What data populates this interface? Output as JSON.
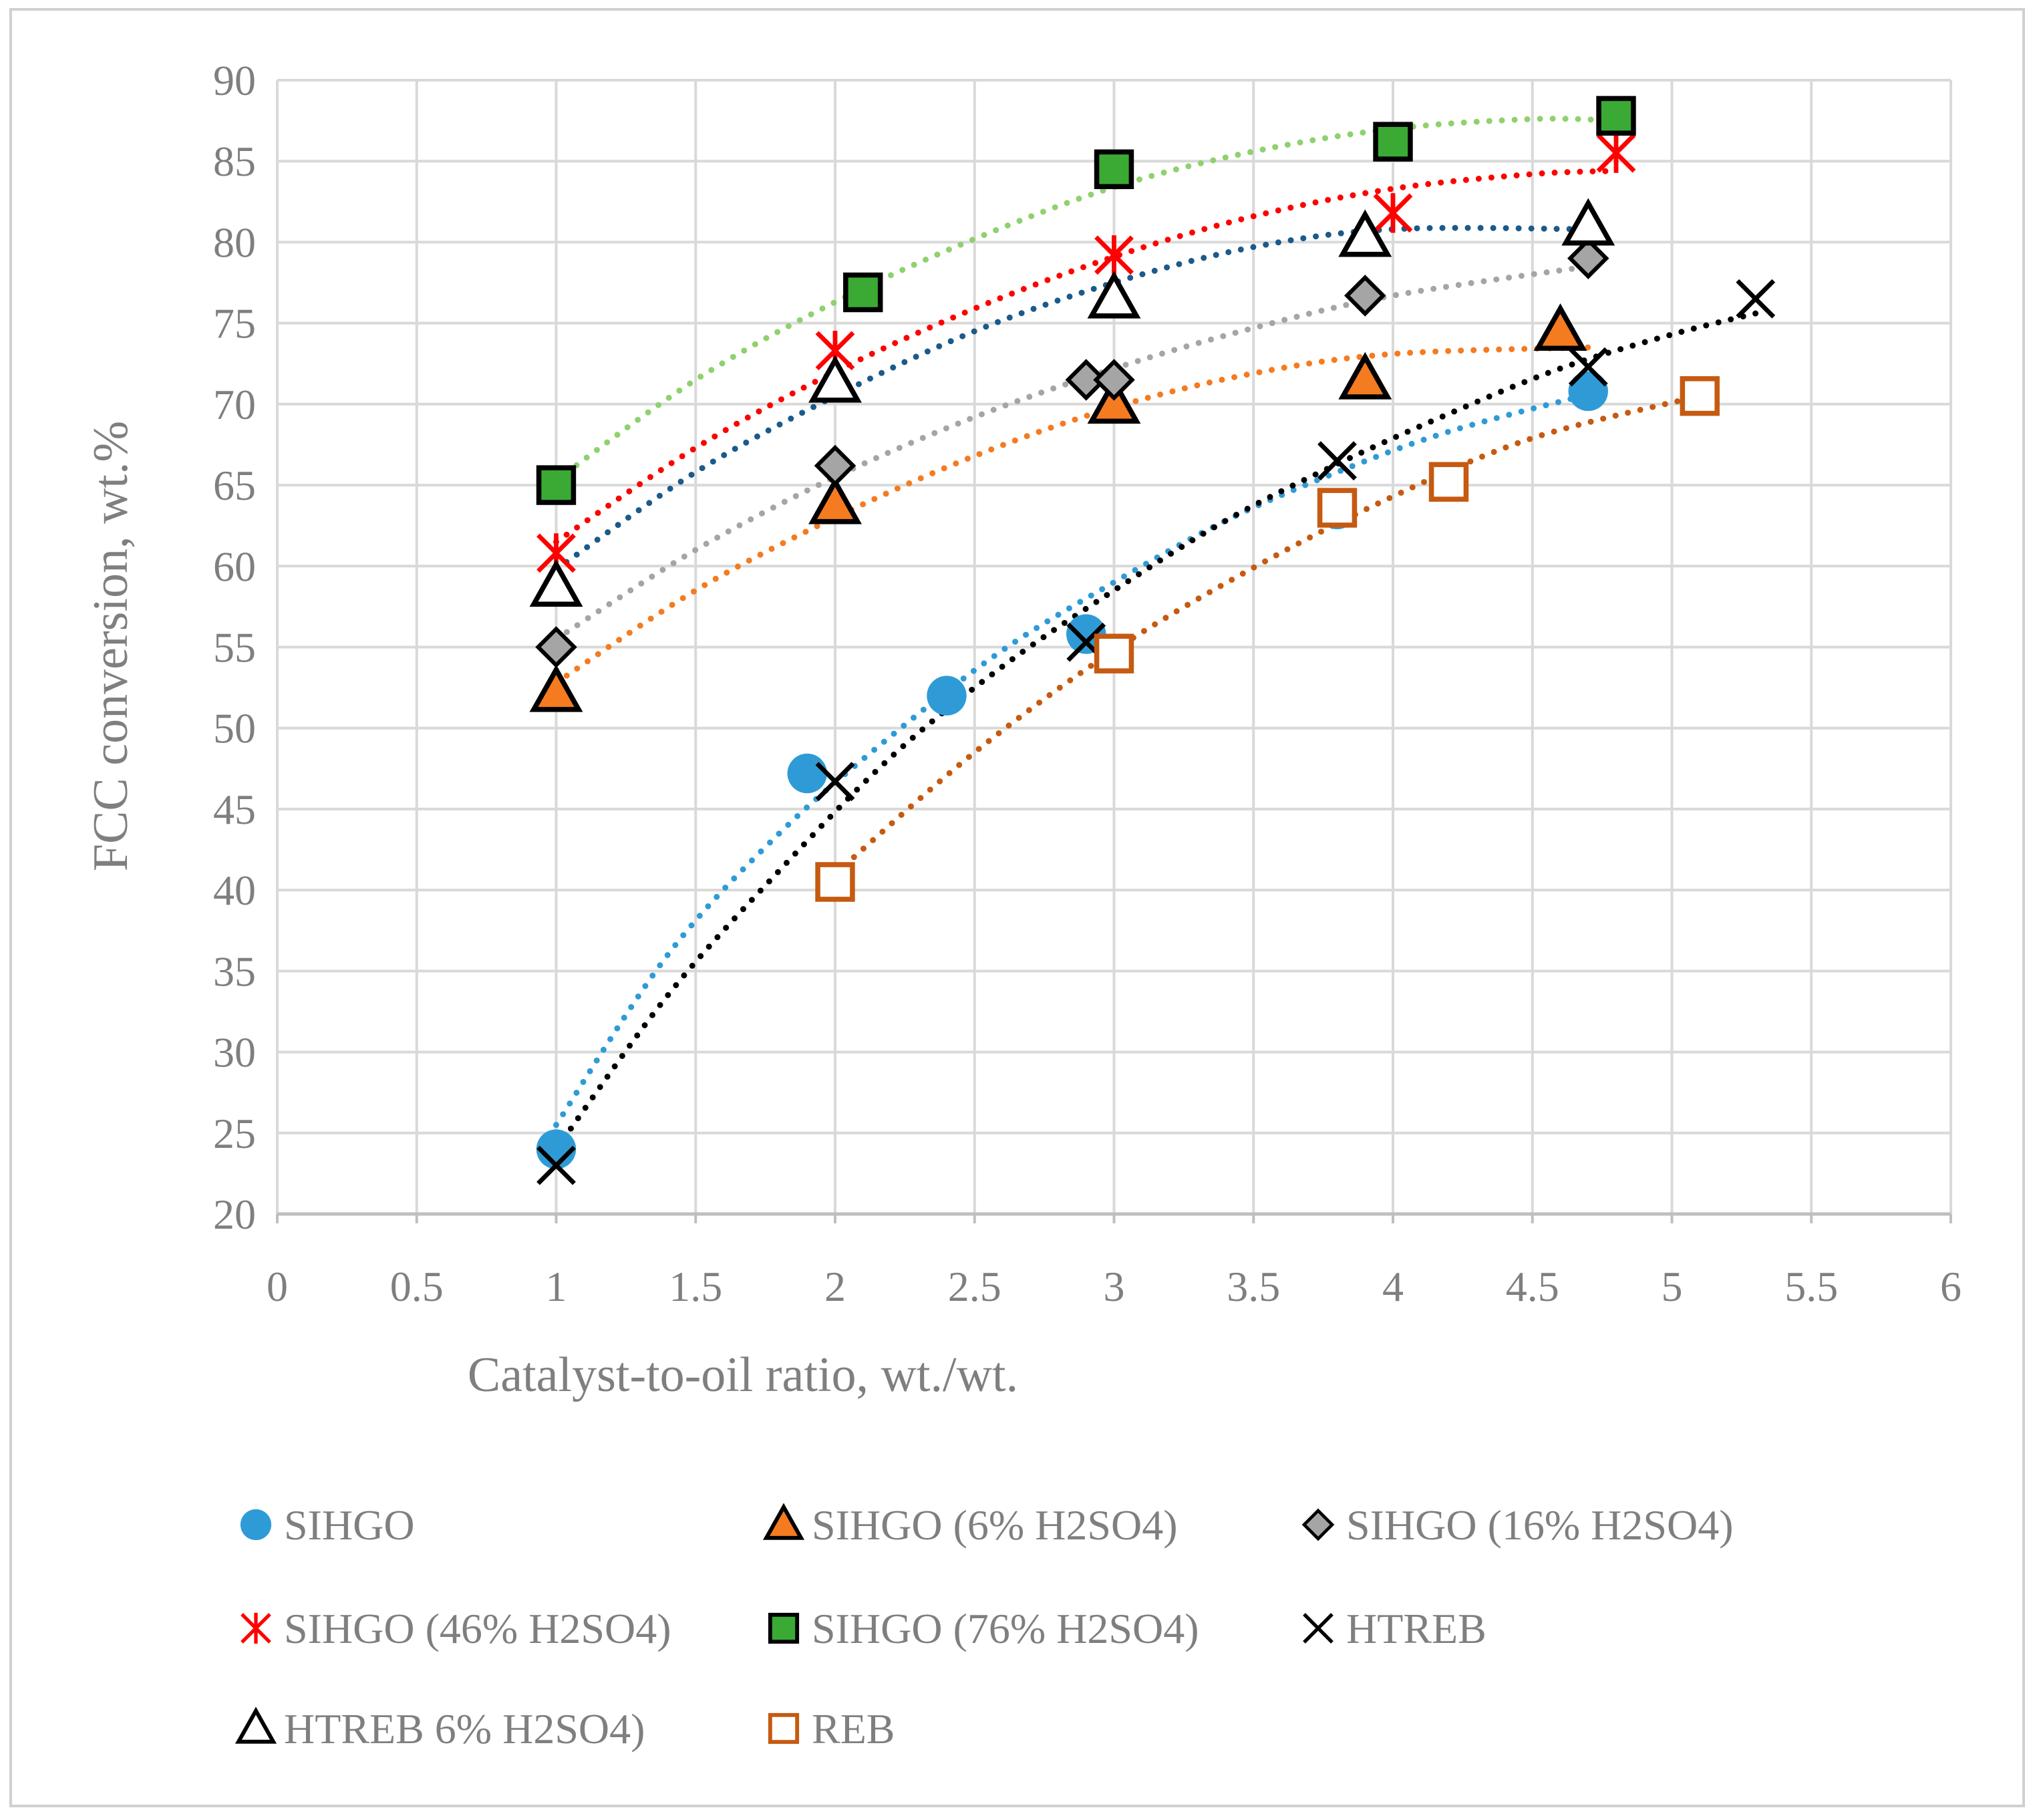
{
  "chart_data": {
    "type": "scatter",
    "title": "",
    "xlabel": "Catalyst-to-oil ratio, wt./wt.",
    "ylabel": "FCC conversion, wt.%",
    "xlim": [
      0,
      6
    ],
    "ylim": [
      20,
      90
    ],
    "xticks": [
      0,
      0.5,
      1,
      1.5,
      2,
      2.5,
      3,
      3.5,
      4,
      4.5,
      5,
      5.5,
      6
    ],
    "yticks": [
      20,
      25,
      30,
      35,
      40,
      45,
      50,
      55,
      60,
      65,
      70,
      75,
      80,
      85,
      90
    ],
    "xtick_labels": [
      "0",
      "0.5",
      "1",
      "1.5",
      "2",
      "2.5",
      "3",
      "3.5",
      "4",
      "4.5",
      "5",
      "5.5",
      "6"
    ],
    "ytick_labels": [
      "20",
      "25",
      "30",
      "35",
      "40",
      "45",
      "50",
      "55",
      "60",
      "65",
      "70",
      "75",
      "80",
      "85",
      "90"
    ],
    "grid": true,
    "legend_position": "bottom",
    "series": [
      {
        "name": "SIHGO",
        "marker": "circle",
        "color": "#2e9bd6",
        "trend_color": "#2e9bd6",
        "x": [
          1,
          1.9,
          2.4,
          2.9,
          3.8,
          4.7
        ],
        "y": [
          24,
          47.2,
          52,
          55.8,
          63.5,
          70.8
        ],
        "trend_x": [
          1,
          1.4,
          1.8,
          2.2,
          2.6,
          3.0,
          3.4,
          3.8,
          4.2,
          4.7
        ],
        "trend_y": [
          25.5,
          36.0,
          43.5,
          49.5,
          54.8,
          59.0,
          62.8,
          65.8,
          68.3,
          70.6
        ]
      },
      {
        "name": "SIHGO (6% H2SO4)",
        "marker": "triangle",
        "color": "#f47b20",
        "trend_color": "#f47b20",
        "x": [
          1,
          2,
          3,
          3.9,
          4.6
        ],
        "y": [
          52.2,
          63.8,
          70,
          71.5,
          74.5
        ],
        "trend_x": [
          1,
          1.5,
          2,
          2.5,
          3,
          3.5,
          4,
          4.7
        ],
        "trend_y": [
          52.8,
          58.5,
          63.0,
          66.8,
          69.8,
          71.9,
          73.1,
          73.5
        ]
      },
      {
        "name": "SIHGO (16% H2SO4)",
        "marker": "diamond",
        "color": "#a5a5a5",
        "trend_color": "#a5a5a5",
        "x": [
          1,
          2,
          2.9,
          3,
          3.9,
          4.7
        ],
        "y": [
          55,
          66.2,
          71.5,
          71.5,
          76.7,
          79
        ],
        "trend_x": [
          1,
          1.5,
          2,
          2.5,
          3,
          3.5,
          4,
          4.7
        ],
        "trend_y": [
          55.5,
          61.0,
          65.5,
          69.2,
          72.2,
          74.7,
          76.7,
          78.5
        ]
      },
      {
        "name": "SIHGO (46% H2SO4)",
        "marker": "asterisk",
        "color": "#ff0000",
        "trend_color": "#ff0000",
        "x": [
          1,
          2,
          3,
          4,
          4.8
        ],
        "y": [
          60.8,
          73.3,
          79.2,
          81.8,
          85.5
        ],
        "trend_x": [
          1,
          1.5,
          2,
          2.5,
          3,
          3.5,
          4,
          4.5,
          4.8
        ],
        "trend_y": [
          61.5,
          67.3,
          72.0,
          75.9,
          79.1,
          81.6,
          83.3,
          84.2,
          84.4
        ]
      },
      {
        "name": "SIHGO (76% H2SO4)",
        "marker": "square",
        "color": "#3aaa35",
        "trend_color": "#8fd16e",
        "x": [
          1,
          2.1,
          3,
          4,
          4.8
        ],
        "y": [
          65,
          76.9,
          84.5,
          86.2,
          87.8
        ],
        "trend_x": [
          1,
          1.5,
          2,
          2.5,
          3,
          3.5,
          4,
          4.5,
          4.8
        ],
        "trend_y": [
          65.3,
          71.5,
          76.3,
          80.2,
          83.4,
          85.6,
          87.0,
          87.6,
          87.5
        ]
      },
      {
        "name": "HTREB",
        "marker": "x",
        "color": "#000000",
        "trend_color": "#000000",
        "x": [
          1,
          2,
          2.9,
          3.8,
          4.7,
          5.3
        ],
        "y": [
          23,
          46.7,
          55.3,
          66.5,
          72.3,
          76.5
        ],
        "trend_x": [
          1,
          1.4,
          1.8,
          2.2,
          2.6,
          3.0,
          3.4,
          3.8,
          4.2,
          4.6,
          5.0,
          5.3
        ],
        "trend_y": [
          24.0,
          33.5,
          41.2,
          48.2,
          53.8,
          58.5,
          62.8,
          66.3,
          69.4,
          72.2,
          74.3,
          75.6
        ]
      },
      {
        "name": "HTREB 6% H2SO4)",
        "marker": "triangle-open",
        "color": "#000000",
        "trend_color": "#1b5a8a",
        "x": [
          1,
          2,
          3,
          3.9,
          4.7
        ],
        "y": [
          58.7,
          71.3,
          76.5,
          80.3,
          81
        ],
        "trend_x": [
          1,
          1.5,
          2,
          2.5,
          3,
          3.5,
          4,
          4.7
        ],
        "trend_y": [
          59.8,
          65.8,
          70.5,
          74.5,
          77.5,
          79.7,
          80.8,
          80.8
        ]
      },
      {
        "name": "REB",
        "marker": "square-open",
        "color": "#c55a11",
        "trend_color": "#c55a11",
        "x": [
          2,
          3,
          3.8,
          4.2,
          5.1
        ],
        "y": [
          40.5,
          54.6,
          63.6,
          65.2,
          70.5
        ],
        "trend_x": [
          2,
          2.5,
          3,
          3.5,
          4,
          4.5,
          5.1
        ],
        "trend_y": [
          41.0,
          48.5,
          54.8,
          59.9,
          64.3,
          67.9,
          70.5
        ]
      }
    ]
  }
}
